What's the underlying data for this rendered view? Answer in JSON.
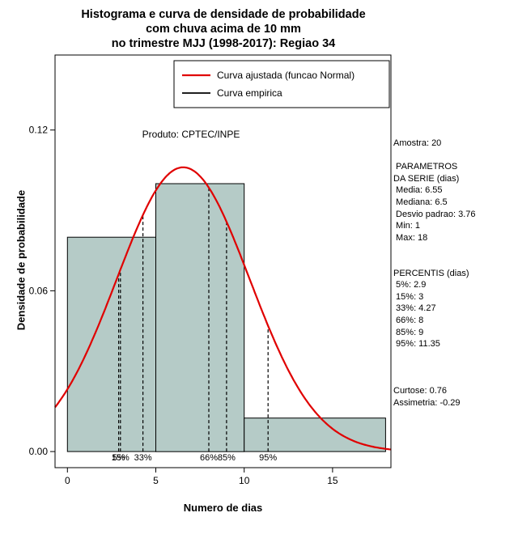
{
  "title": {
    "lines": [
      "Histograma e curva de densidade de probabilidade",
      "com chuva acima de 10 mm",
      "no trimestre MJJ (1998-2017): Regiao 34"
    ]
  },
  "axes": {
    "x_label": "Numero de dias",
    "y_label": "Densidade de probabilidade"
  },
  "legend": {
    "items": [
      {
        "label": "Curva ajustada (funcao Normal)",
        "color": "#e00000",
        "width": 2.2
      },
      {
        "label": "Curva empirica",
        "color": "#000000",
        "width": 1.8
      }
    ]
  },
  "annotations": {
    "product": "Produto: CPTEC/INPE"
  },
  "stats_panel": {
    "lines": [
      "Amostra: 20",
      "",
      " PARAMETROS",
      "DA SERIE (dias)",
      " Media: 6.55",
      " Mediana: 6.5",
      " Desvio padrao: 3.76",
      " Min: 1",
      " Max: 18",
      "",
      "",
      "PERCENTIS (dias)",
      " 5%: 2.9",
      " 15%: 3",
      " 33%: 4.27",
      " 66%: 8",
      " 85%: 9",
      " 95%: 11.35",
      "",
      "",
      "",
      "Curtose: 0.76",
      "Assimetria: -0.29"
    ]
  },
  "chart_data": {
    "type": "bar",
    "subtype": "histogram_with_density",
    "title": "Histograma e curva de densidade de probabilidade com chuva acima de 10 mm no trimestre MJJ (1998-2017): Regiao 34",
    "xlabel": "Numero de dias",
    "ylabel": "Densidade de probabilidade",
    "xlim": [
      -0.7,
      18.3
    ],
    "ylim": [
      -0.006,
      0.148
    ],
    "x_ticks": [
      {
        "value": 0,
        "label": "0"
      },
      {
        "value": 5,
        "label": "5"
      },
      {
        "value": 10,
        "label": "10"
      },
      {
        "value": 15,
        "label": "15"
      }
    ],
    "y_ticks": [
      {
        "value": 0,
        "label": "0.00"
      },
      {
        "value": 0.06,
        "label": "0.06"
      },
      {
        "value": 0.12,
        "label": "0.12"
      }
    ],
    "bars": [
      {
        "from": 0,
        "to": 5,
        "density": 0.08
      },
      {
        "from": 5,
        "to": 10,
        "density": 0.1
      },
      {
        "from": 10,
        "to": 18,
        "density": 0.0125
      }
    ],
    "bar_fill": "#b5cbc7",
    "empirical_color": "#000000",
    "normal_curve": {
      "mean": 6.55,
      "sd": 3.76,
      "color": "#e00000",
      "line_width": 2.2
    },
    "percentiles": [
      {
        "label": "5%",
        "x": 2.9
      },
      {
        "label": "15%",
        "x": 3
      },
      {
        "label": "33%",
        "x": 4.27
      },
      {
        "label": "66%",
        "x": 8
      },
      {
        "label": "85%",
        "x": 9
      },
      {
        "label": "95%",
        "x": 11.35
      }
    ],
    "sample_size": 20,
    "grid": false,
    "legend_position": "top"
  }
}
